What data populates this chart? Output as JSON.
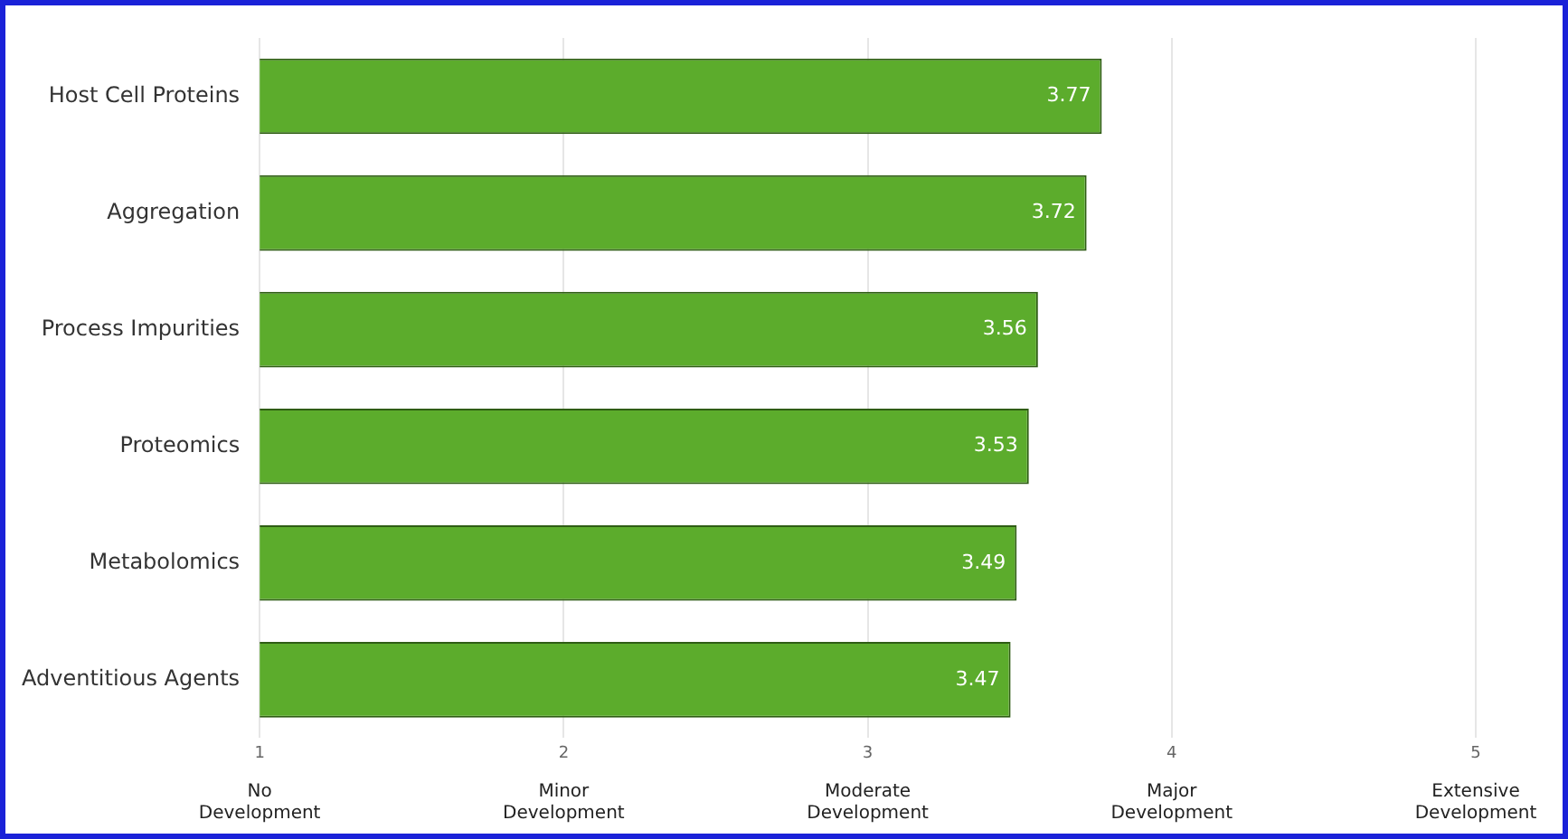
{
  "chart_data": {
    "type": "bar",
    "orientation": "horizontal",
    "categories": [
      "Host Cell Proteins",
      "Aggregation",
      "Process Impurities",
      "Proteomics",
      "Metabolomics",
      "Adventitious Agents"
    ],
    "values": [
      3.77,
      3.72,
      3.56,
      3.53,
      3.49,
      3.47
    ],
    "color": "#5cac2c",
    "xlim": [
      1,
      5
    ],
    "xticks": [
      1,
      2,
      3,
      4,
      5
    ],
    "annotations": [
      "No Development",
      "Minor Development",
      "Moderate Development",
      "Major Development",
      "Extensive Development"
    ],
    "grid": "x",
    "data_labels": true
  }
}
